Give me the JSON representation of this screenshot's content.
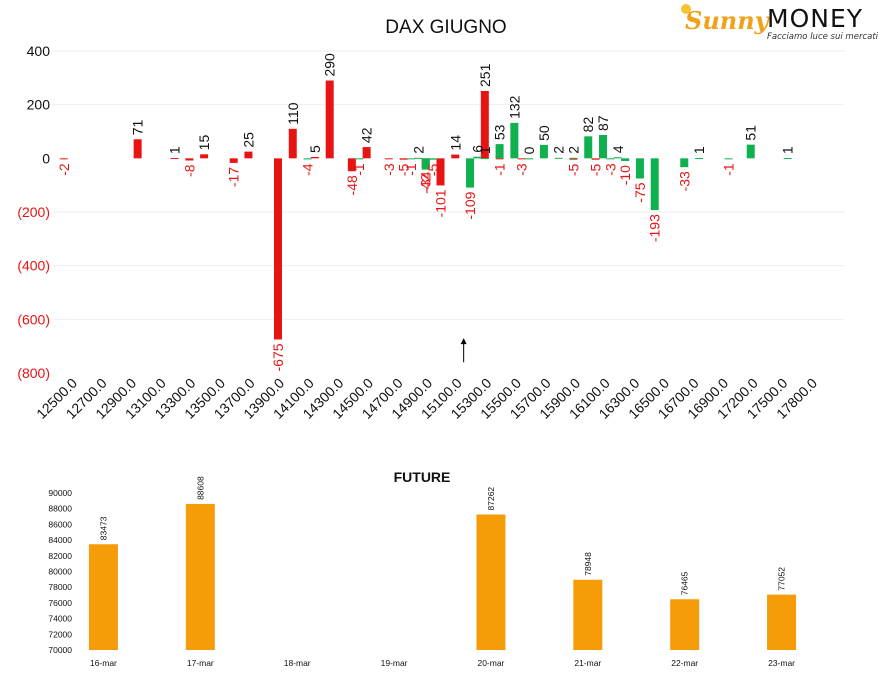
{
  "logo": {
    "brand_first": "Sunny",
    "brand_second": "MONEY",
    "tagline": "Facciamo luce sui mercati",
    "colors": {
      "accent": "#f0a21a",
      "text": "#111111"
    }
  },
  "chart_data": [
    {
      "type": "bar",
      "title": "DAX GIUGNO",
      "categories": [
        "12500.0",
        "12700.0",
        "12900.0",
        "13100.0",
        "13300.0",
        "13500.0",
        "13700.0",
        "13900.0",
        "14100.0",
        "14300.0",
        "14500.0",
        "14700.0",
        "14900.0",
        "15100.0",
        "15300.0",
        "15500.0",
        "15700.0",
        "15900.0",
        "16100.0",
        "16300.0",
        "16500.0",
        "16700.0",
        "16900.0",
        "17200.0",
        "17500.0",
        "17800.0"
      ],
      "ylim": [
        -800,
        400
      ],
      "yticks": [
        400,
        200,
        0,
        -200,
        -400,
        -600,
        -800
      ],
      "ytick_labels": [
        "400",
        "200",
        "0",
        "(200)",
        "(400)",
        "(600)",
        "(800)"
      ],
      "grid": true,
      "series": [
        {
          "color": "#e81414",
          "points": [
            {
              "x": 12600,
              "y": -2
            },
            {
              "x": 13100,
              "y": 71
            },
            {
              "x": 13350,
              "y": 1
            },
            {
              "x": 13450,
              "y": -8
            },
            {
              "x": 13550,
              "y": 15
            },
            {
              "x": 13750,
              "y": -17
            },
            {
              "x": 13850,
              "y": 25
            },
            {
              "x": 14050,
              "y": -675
            },
            {
              "x": 14150,
              "y": 110
            },
            {
              "x": 14300,
              "y": 5
            },
            {
              "x": 14400,
              "y": 290
            },
            {
              "x": 14550,
              "y": -48
            },
            {
              "x": 14650,
              "y": 42
            },
            {
              "x": 14800,
              "y": -3
            },
            {
              "x": 14900,
              "y": -5
            },
            {
              "x": 15050,
              "y": -34
            },
            {
              "x": 15150,
              "y": -101
            },
            {
              "x": 15250,
              "y": 14
            },
            {
              "x": 15450,
              "y": 251
            },
            {
              "x": 15550,
              "y": -1
            },
            {
              "x": 15700,
              "y": -3
            },
            {
              "x": 16050,
              "y": -5
            },
            {
              "x": 16200,
              "y": -5
            }
          ]
        },
        {
          "color": "#0fb04e",
          "points": [
            {
              "x": 14250,
              "y": -4
            },
            {
              "x": 14600,
              "y": -1
            },
            {
              "x": 14950,
              "y": -1
            },
            {
              "x": 15000,
              "y": 2
            },
            {
              "x": 15050,
              "y": -42
            },
            {
              "x": 15100,
              "y": -5
            },
            {
              "x": 15350,
              "y": -109
            },
            {
              "x": 15400,
              "y": 6
            },
            {
              "x": 15450,
              "y": 1
            },
            {
              "x": 15550,
              "y": 53
            },
            {
              "x": 15650,
              "y": 132
            },
            {
              "x": 15750,
              "y": 0
            },
            {
              "x": 15850,
              "y": 50
            },
            {
              "x": 15950,
              "y": 2
            },
            {
              "x": 16050,
              "y": 2
            },
            {
              "x": 16150,
              "y": 82
            },
            {
              "x": 16250,
              "y": 87
            },
            {
              "x": 16300,
              "y": -3
            },
            {
              "x": 16350,
              "y": 4
            },
            {
              "x": 16400,
              "y": -10
            },
            {
              "x": 16500,
              "y": -75
            },
            {
              "x": 16600,
              "y": -193
            },
            {
              "x": 16800,
              "y": -33
            },
            {
              "x": 16900,
              "y": 1
            },
            {
              "x": 17100,
              "y": -1
            },
            {
              "x": 17250,
              "y": 51
            },
            {
              "x": 17500,
              "y": 1
            }
          ]
        }
      ],
      "annotations": [
        {
          "type": "arrow",
          "x": 15300,
          "from_y": -760,
          "to_y": -670
        }
      ]
    },
    {
      "type": "bar",
      "title": "FUTURE",
      "categories": [
        "16-mar",
        "17-mar",
        "18-mar",
        "19-mar",
        "20-mar",
        "21-mar",
        "22-mar",
        "23-mar"
      ],
      "series": [
        {
          "color": "#f59c08",
          "values": [
            83473,
            88608,
            null,
            null,
            87262,
            78948,
            76465,
            77052
          ]
        }
      ],
      "data_labels": [
        "83473",
        "88608",
        "",
        "",
        "87262",
        "78948",
        "76465",
        "77052"
      ],
      "ylim": [
        70000,
        90000
      ],
      "yticks": [
        70000,
        72000,
        74000,
        76000,
        78000,
        80000,
        82000,
        84000,
        86000,
        88000,
        90000
      ],
      "grid": false
    }
  ]
}
